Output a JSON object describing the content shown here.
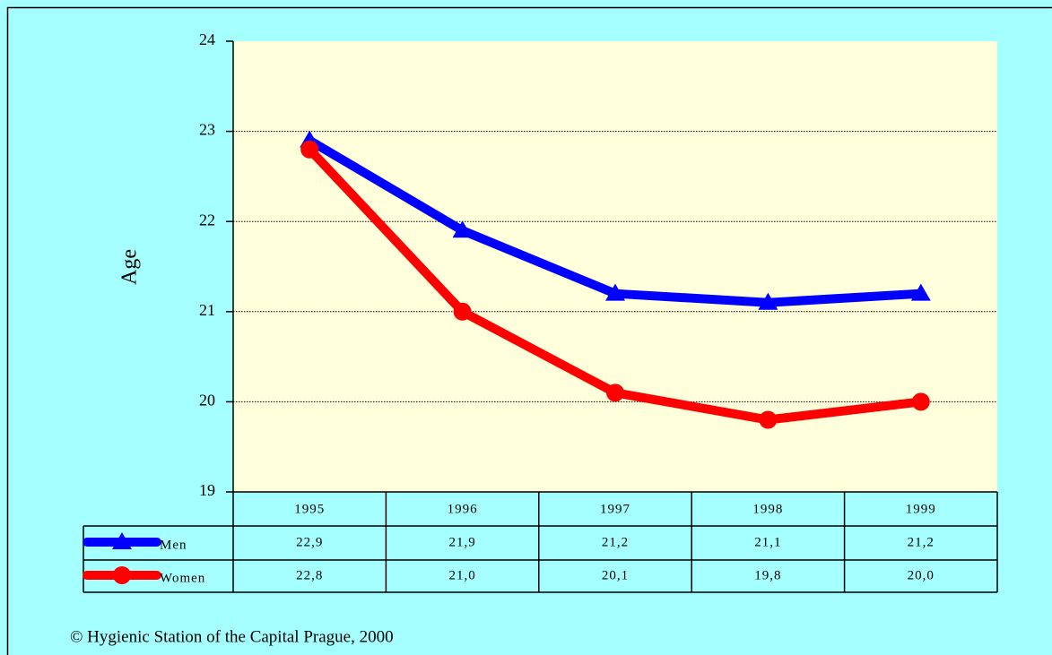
{
  "chart_data": {
    "type": "line",
    "y_label": "Age",
    "categories": [
      "1995",
      "1996",
      "1997",
      "1998",
      "1999"
    ],
    "series": [
      {
        "name": "Men",
        "color": "#0000ff",
        "marker": "triangle",
        "values": [
          22.9,
          21.9,
          21.2,
          21.1,
          21.2
        ],
        "value_labels": [
          "22,9",
          "21,9",
          "21,2",
          "21,1",
          "21,2"
        ]
      },
      {
        "name": "Women",
        "color": "#ff0000",
        "marker": "circle",
        "values": [
          22.8,
          21.0,
          20.1,
          19.8,
          20.0
        ],
        "value_labels": [
          "22,8",
          "21,0",
          "20,1",
          "19,8",
          "20,0"
        ]
      }
    ],
    "ylim": [
      19,
      24
    ],
    "yticks": [
      19,
      20,
      21,
      22,
      23,
      24
    ],
    "grid": true,
    "source": "© Hygienic Station of the Capital Prague, 2000"
  }
}
